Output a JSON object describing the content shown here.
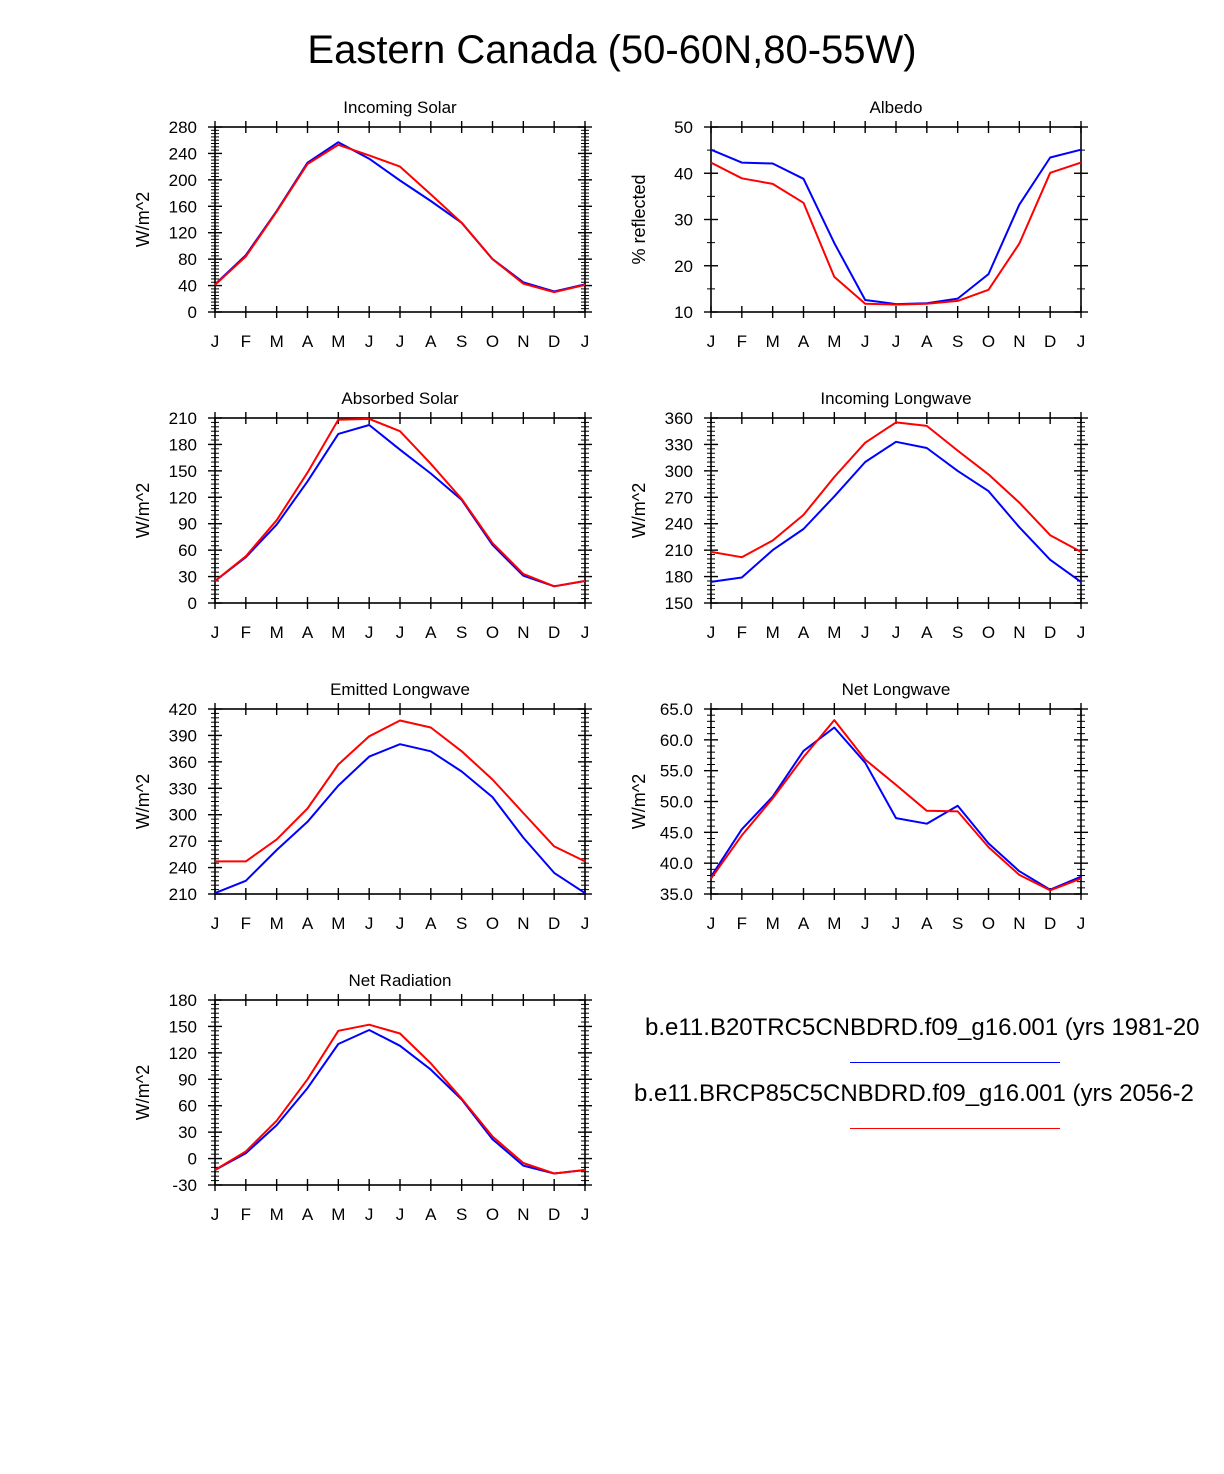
{
  "title": "Eastern Canada (50-60N,80-55W)",
  "colors": {
    "series_1": "#0000ff",
    "series_2": "#ff0000",
    "axis": "#000000"
  },
  "legend": [
    {
      "label": "b.e11.B20TRC5CNBDRD.f09_g16.001 (yrs 1981-20",
      "color": "#0000ff"
    },
    {
      "label": "b.e11.BRCP85C5CNBDRD.f09_g16.001 (yrs 2056-2",
      "color": "#ff0000"
    }
  ],
  "chart_data": [
    {
      "type": "line",
      "title": "Incoming Solar",
      "xlabel": "",
      "ylabel": "W/m^2",
      "categories": [
        "J",
        "F",
        "M",
        "A",
        "M",
        "J",
        "J",
        "A",
        "S",
        "O",
        "N",
        "D",
        "J"
      ],
      "ylim": [
        0,
        280
      ],
      "yticks": [
        0,
        40,
        80,
        120,
        160,
        200,
        240,
        280
      ],
      "ydecimals": 0,
      "yminor": 8,
      "series": [
        {
          "name": "b.e11.B20TRC5CNBDRD.f09_g16.001",
          "color": "#0000ff",
          "values": [
            42,
            86,
            153,
            226,
            257,
            232,
            199,
            168,
            135,
            80,
            45,
            31,
            42
          ]
        },
        {
          "name": "b.e11.BRCP85C5CNBDRD.f09_g16.001",
          "color": "#ff0000",
          "values": [
            41,
            84,
            152,
            224,
            253,
            237,
            220,
            178,
            135,
            80,
            43,
            30,
            41
          ]
        }
      ]
    },
    {
      "type": "line",
      "title": "Albedo",
      "xlabel": "",
      "ylabel": "% reflected",
      "categories": [
        "J",
        "F",
        "M",
        "A",
        "M",
        "J",
        "J",
        "A",
        "S",
        "O",
        "N",
        "D",
        "J"
      ],
      "ylim": [
        10,
        50
      ],
      "yticks": [
        10,
        20,
        30,
        40,
        50
      ],
      "ydecimals": 0,
      "yminor": 2,
      "series": [
        {
          "name": "b.e11.B20TRC5CNBDRD.f09_g16.001",
          "color": "#0000ff",
          "values": [
            45.1,
            42.3,
            42.1,
            38.8,
            24.9,
            12.6,
            11.7,
            11.9,
            12.9,
            18.2,
            33.2,
            43.4,
            45.1
          ]
        },
        {
          "name": "b.e11.BRCP85C5CNBDRD.f09_g16.001",
          "color": "#ff0000",
          "values": [
            42.3,
            38.9,
            37.7,
            33.6,
            17.6,
            11.8,
            11.6,
            11.8,
            12.4,
            14.8,
            24.8,
            40.1,
            42.3
          ]
        }
      ]
    },
    {
      "type": "line",
      "title": "Absorbed Solar",
      "xlabel": "",
      "ylabel": "W/m^2",
      "categories": [
        "J",
        "F",
        "M",
        "A",
        "M",
        "J",
        "J",
        "A",
        "S",
        "O",
        "N",
        "D",
        "J"
      ],
      "ylim": [
        0,
        210
      ],
      "yticks": [
        0,
        30,
        60,
        90,
        120,
        150,
        180,
        210
      ],
      "ydecimals": 0,
      "yminor": 6,
      "series": [
        {
          "name": "b.e11.B20TRC5CNBDRD.f09_g16.001",
          "color": "#0000ff",
          "values": [
            25,
            52,
            89,
            138,
            192,
            202,
            174,
            147,
            117,
            66,
            31,
            19,
            25
          ]
        },
        {
          "name": "b.e11.BRCP85C5CNBDRD.f09_g16.001",
          "color": "#ff0000",
          "values": [
            25,
            53,
            94,
            148,
            208,
            209,
            195,
            158,
            118,
            68,
            33,
            19,
            25
          ]
        }
      ]
    },
    {
      "type": "line",
      "title": "Incoming Longwave",
      "xlabel": "",
      "ylabel": "W/m^2",
      "categories": [
        "J",
        "F",
        "M",
        "A",
        "M",
        "J",
        "J",
        "A",
        "S",
        "O",
        "N",
        "D",
        "J"
      ],
      "ylim": [
        150,
        360
      ],
      "yticks": [
        150,
        180,
        210,
        240,
        270,
        300,
        330,
        360
      ],
      "ydecimals": 0,
      "yminor": 6,
      "series": [
        {
          "name": "b.e11.B20TRC5CNBDRD.f09_g16.001",
          "color": "#0000ff",
          "values": [
            174,
            179,
            210,
            234,
            271,
            310,
            333,
            326,
            300,
            277,
            236,
            199,
            174
          ]
        },
        {
          "name": "b.e11.BRCP85C5CNBDRD.f09_g16.001",
          "color": "#ff0000",
          "values": [
            208,
            202,
            221,
            250,
            293,
            332,
            355,
            351,
            323,
            296,
            264,
            227,
            208
          ]
        }
      ]
    },
    {
      "type": "line",
      "title": "Emitted Longwave",
      "xlabel": "",
      "ylabel": "W/m^2",
      "categories": [
        "J",
        "F",
        "M",
        "A",
        "M",
        "J",
        "J",
        "A",
        "S",
        "O",
        "N",
        "D",
        "J"
      ],
      "ylim": [
        210,
        420
      ],
      "yticks": [
        210,
        240,
        270,
        300,
        330,
        360,
        390,
        420
      ],
      "ydecimals": 0,
      "yminor": 6,
      "series": [
        {
          "name": "b.e11.B20TRC5CNBDRD.f09_g16.001",
          "color": "#0000ff",
          "values": [
            211,
            225,
            260,
            292,
            333,
            366,
            380,
            372,
            349,
            320,
            274,
            234,
            211
          ]
        },
        {
          "name": "b.e11.BRCP85C5CNBDRD.f09_g16.001",
          "color": "#ff0000",
          "values": [
            247,
            247,
            272,
            307,
            357,
            389,
            407,
            399,
            372,
            340,
            302,
            264,
            247
          ]
        }
      ]
    },
    {
      "type": "line",
      "title": "Net Longwave",
      "xlabel": "",
      "ylabel": "W/m^2",
      "categories": [
        "J",
        "F",
        "M",
        "A",
        "M",
        "J",
        "J",
        "A",
        "S",
        "O",
        "N",
        "D",
        "J"
      ],
      "ylim": [
        35,
        65
      ],
      "yticks": [
        35,
        40,
        45,
        50,
        55,
        60,
        65
      ],
      "ydecimals": 1,
      "yminor": 5,
      "series": [
        {
          "name": "b.e11.B20TRC5CNBDRD.f09_g16.001",
          "color": "#0000ff",
          "values": [
            37.8,
            45.5,
            50.8,
            58.2,
            62.0,
            56.3,
            47.3,
            46.4,
            49.3,
            43.2,
            38.7,
            35.7,
            37.8
          ]
        },
        {
          "name": "b.e11.BRCP85C5CNBDRD.f09_g16.001",
          "color": "#ff0000",
          "values": [
            37.5,
            44.5,
            50.5,
            57.2,
            63.2,
            56.8,
            52.7,
            48.5,
            48.4,
            42.6,
            38.1,
            35.6,
            37.5
          ]
        }
      ]
    },
    {
      "type": "line",
      "title": "Net Radiation",
      "xlabel": "",
      "ylabel": "W/m^2",
      "categories": [
        "J",
        "F",
        "M",
        "A",
        "M",
        "J",
        "J",
        "A",
        "S",
        "O",
        "N",
        "D",
        "J"
      ],
      "ylim": [
        -30,
        180
      ],
      "yticks": [
        -30,
        0,
        30,
        60,
        90,
        120,
        150,
        180
      ],
      "ydecimals": 0,
      "yminor": 6,
      "series": [
        {
          "name": "b.e11.B20TRC5CNBDRD.f09_g16.001",
          "color": "#0000ff",
          "values": [
            -13,
            6,
            38,
            80,
            130,
            146,
            128,
            101,
            67,
            22,
            -8,
            -17,
            -13
          ]
        },
        {
          "name": "b.e11.BRCP85C5CNBDRD.f09_g16.001",
          "color": "#ff0000",
          "values": [
            -13,
            8,
            43,
            90,
            145,
            152,
            142,
            108,
            68,
            25,
            -5,
            -17,
            -13
          ]
        }
      ]
    }
  ]
}
